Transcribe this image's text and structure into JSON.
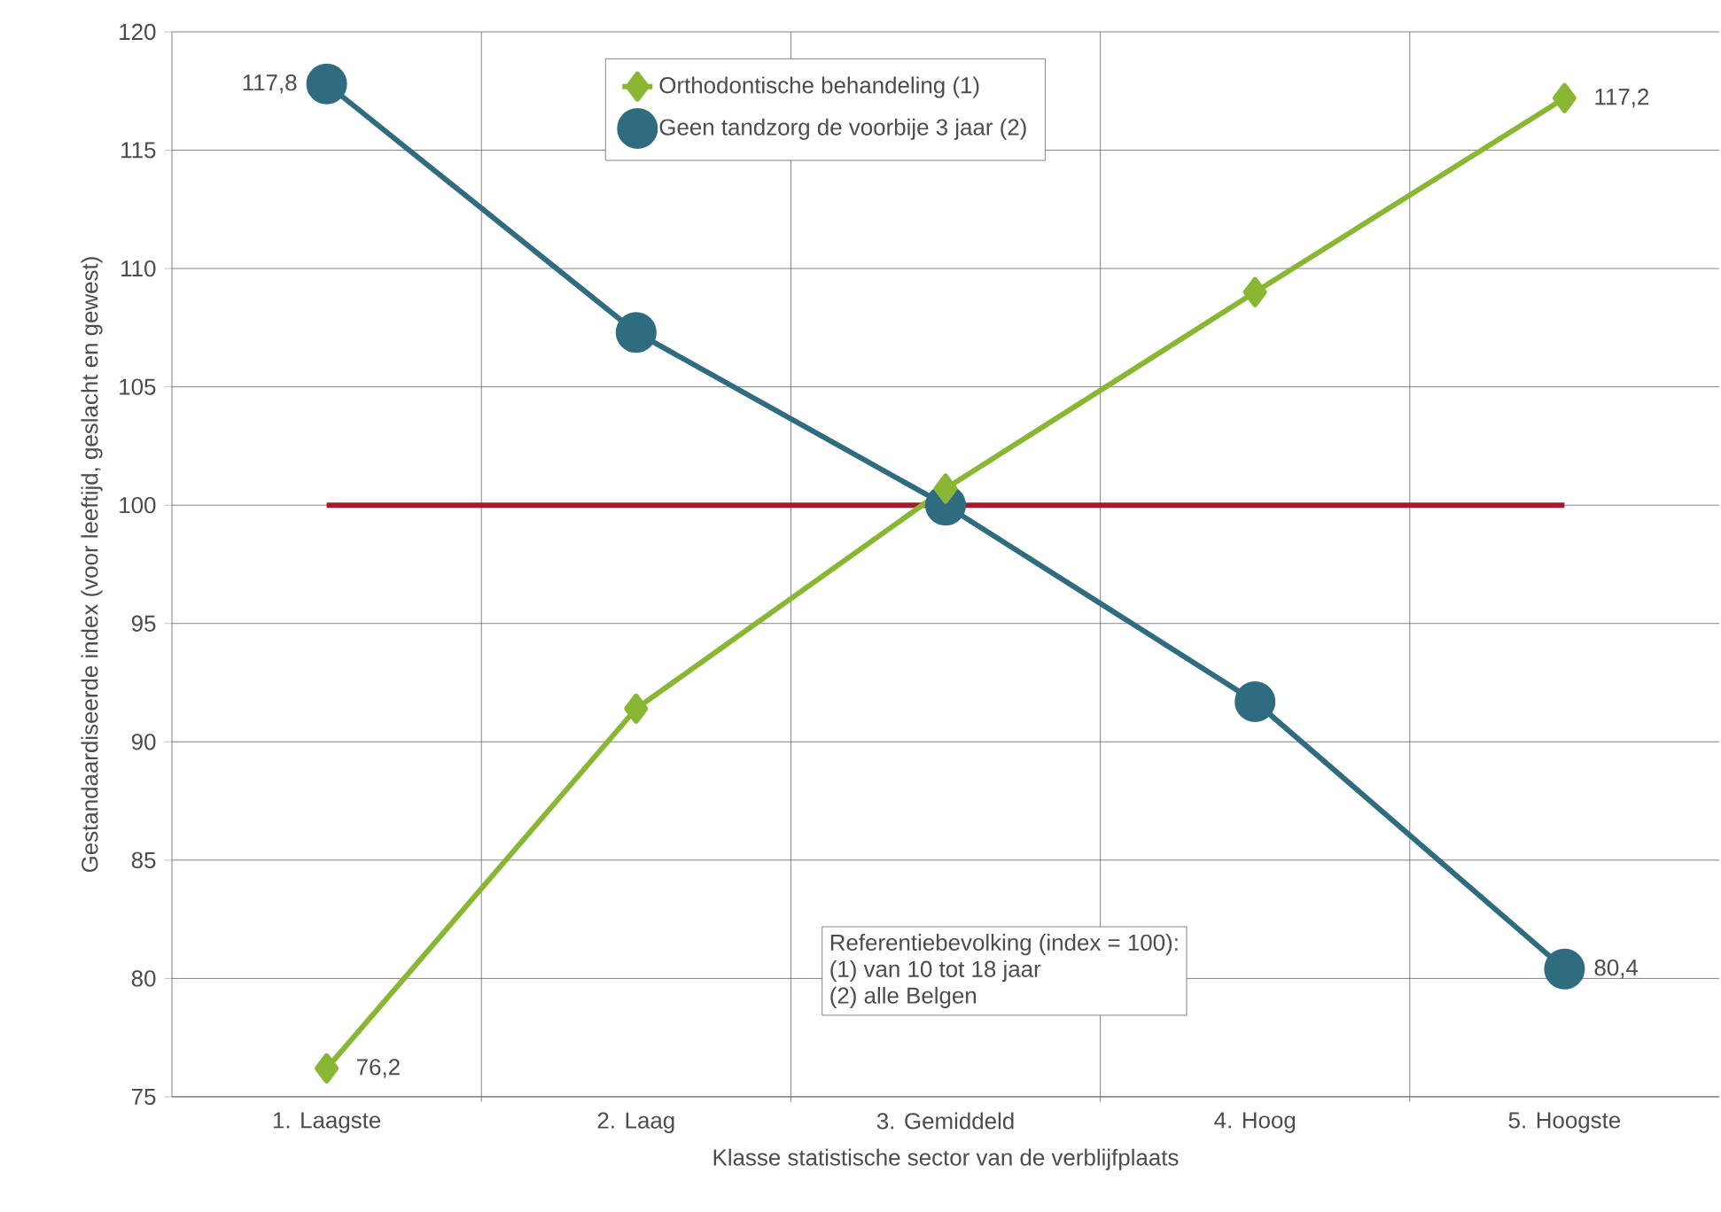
{
  "chart_data": {
    "type": "line",
    "xlabel": "Klasse statistische sector van de verblijfplaats",
    "ylabel": "Gestandaardiseerde index (voor leeftijd, geslacht en gewest)",
    "categories": [
      "1. Laagste",
      "2. Laag",
      "3. Gemiddeld",
      "4. Hoog",
      "5. Hoogste"
    ],
    "series": [
      {
        "name": "Orthodontische behandeling (1)",
        "color": "#8ab733",
        "marker": "diamond",
        "values": [
          76.2,
          91.4,
          100.7,
          109.0,
          117.2
        ],
        "value_labels": [
          "76,2",
          null,
          null,
          null,
          "117,2"
        ]
      },
      {
        "name": "Geen tandzorg de voorbije 3 jaar (2)",
        "color": "#2f6c80",
        "marker": "circle",
        "values": [
          117.8,
          107.3,
          100.0,
          91.7,
          80.4
        ],
        "value_labels": [
          "117,8",
          null,
          null,
          null,
          "80,4"
        ]
      }
    ],
    "ylim": [
      75,
      120
    ],
    "yticks": [
      75,
      80,
      85,
      90,
      95,
      100,
      105,
      110,
      115,
      120
    ],
    "ref_lines": [
      {
        "axis": "y",
        "value": 100,
        "color": "#a6192e"
      }
    ],
    "annotations": [
      "Referentiebevolking (index = 100):",
      "(1) van 10 tot 18 jaar",
      "(2) alle Belgen"
    ],
    "grid": true,
    "legend": "top",
    "line_style": "solid"
  }
}
